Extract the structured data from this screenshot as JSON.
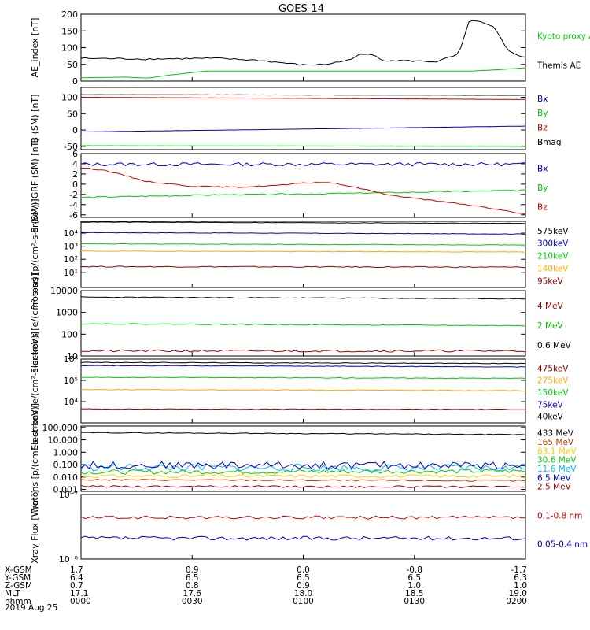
{
  "title": "GOES-14",
  "date": "2019 Aug 25",
  "x_axis": {
    "row_labels": [
      "X-GSM",
      "Y-GSM",
      "Z-GSM",
      "MLT",
      "hhmm"
    ],
    "columns": [
      {
        "values": [
          "1.7",
          "6.4",
          "0.7",
          "17.1",
          "0000"
        ]
      },
      {
        "values": [
          "0.9",
          "6.5",
          "0.8",
          "17.6",
          "0030"
        ]
      },
      {
        "values": [
          "0.0",
          "6.5",
          "0.9",
          "18.0",
          "0100"
        ]
      },
      {
        "values": [
          "-0.8",
          "6.5",
          "1.0",
          "18.5",
          "0130"
        ]
      },
      {
        "values": [
          "-1.7",
          "6.3",
          "1.0",
          "19.0",
          "0200"
        ]
      }
    ]
  },
  "chart_data": [
    {
      "type": "line",
      "ylabel": "AE_index [nT]",
      "scale": "linear",
      "ylim": [
        0,
        200
      ],
      "ticks": [
        {
          "v": 0,
          "t": "0"
        },
        {
          "v": 50,
          "t": "50"
        },
        {
          "v": 100,
          "t": "100"
        },
        {
          "v": 150,
          "t": "150"
        },
        {
          "v": 200,
          "t": "200"
        }
      ],
      "series": [
        {
          "name": "Kyoto proxy AE",
          "color": "#00cc00",
          "noise": 0,
          "ys": 0,
          "t": [
            0,
            0.1,
            0.15,
            0.2,
            0.28,
            0.5,
            0.75,
            0.88,
            0.95,
            1.0
          ],
          "y": [
            10,
            12,
            9,
            18,
            30,
            30,
            30,
            30,
            35,
            40
          ]
        },
        {
          "name": "Themis AE",
          "color": "#000000",
          "noise": 2.5,
          "ys": 1,
          "t": [
            0,
            0.15,
            0.3,
            0.4,
            0.5,
            0.55,
            0.6,
            0.62,
            0.63,
            0.66,
            0.68,
            0.75,
            0.8,
            0.85,
            0.875,
            0.9,
            0.93,
            0.96,
            1.0
          ],
          "y": [
            68,
            66,
            68,
            62,
            48,
            50,
            62,
            75,
            80,
            78,
            62,
            60,
            58,
            80,
            185,
            175,
            160,
            90,
            70
          ]
        }
      ]
    },
    {
      "type": "line",
      "ylabel": "B (SM) [nT]",
      "scale": "linear",
      "ylim": [
        -60,
        130
      ],
      "ticks": [
        {
          "v": -50,
          "t": "-50"
        },
        {
          "v": 0,
          "t": "0"
        },
        {
          "v": 50,
          "t": "50"
        },
        {
          "v": 100,
          "t": "100"
        }
      ],
      "series": [
        {
          "name": "Bx",
          "color": "#0000cc",
          "noise": 0.3,
          "ys": 2,
          "t": [
            0,
            1
          ],
          "y": [
            -6,
            12
          ]
        },
        {
          "name": "By",
          "color": "#00cc00",
          "noise": 0.3,
          "ys": 3,
          "t": [
            0,
            1
          ],
          "y": [
            -48,
            -50
          ]
        },
        {
          "name": "Bz",
          "color": "#cc0000",
          "noise": 0.3,
          "ys": 4,
          "t": [
            0,
            1
          ],
          "y": [
            100,
            93
          ]
        },
        {
          "name": "Bmag",
          "color": "#000000",
          "noise": 0.3,
          "ys": 5,
          "t": [
            0,
            1
          ],
          "y": [
            108,
            106
          ]
        }
      ]
    },
    {
      "type": "line",
      "ylabel": "B (SM)-IGRF (SM) [nT]",
      "scale": "linear",
      "ylim": [
        -6.5,
        6
      ],
      "ticks": [
        {
          "v": -6,
          "t": "-6"
        },
        {
          "v": -4,
          "t": "-4"
        },
        {
          "v": -2,
          "t": "-2"
        },
        {
          "v": 0,
          "t": "0"
        },
        {
          "v": 2,
          "t": "2"
        },
        {
          "v": 4,
          "t": "4"
        },
        {
          "v": 6,
          "t": "6"
        }
      ],
      "series": [
        {
          "name": "Bx",
          "color": "#0000cc",
          "noise": 0.35,
          "ys": 6,
          "t": [
            0,
            1
          ],
          "y": [
            3.9,
            3.9
          ]
        },
        {
          "name": "By",
          "color": "#00cc00",
          "noise": 0.12,
          "ys": 7,
          "t": [
            0,
            0.3,
            0.6,
            1.0
          ],
          "y": [
            -2.6,
            -2.1,
            -1.8,
            -1.2
          ]
        },
        {
          "name": "Bz",
          "color": "#cc0000",
          "noise": 0.1,
          "ys": 8,
          "t": [
            0,
            0.05,
            0.15,
            0.25,
            0.35,
            0.45,
            0.5,
            0.55,
            0.6,
            0.7,
            0.8,
            0.9,
            1.0
          ],
          "y": [
            3.2,
            2.8,
            0.5,
            -0.4,
            -0.6,
            -0.2,
            0.2,
            0.4,
            -0.3,
            -2.2,
            -3.3,
            -4.4,
            -5.9
          ]
        }
      ]
    },
    {
      "type": "line",
      "ylabel": "Protons [p/(cm²-s-sr-keV)]",
      "scale": "log",
      "ylim": [
        0.7,
        80000
      ],
      "ticks": [
        {
          "v": 10,
          "t": "10¹"
        },
        {
          "v": 100,
          "t": "10²"
        },
        {
          "v": 1000,
          "t": "10³"
        },
        {
          "v": 10000,
          "t": "10⁴"
        }
      ],
      "series": [
        {
          "name": "575keV",
          "color": "#000000",
          "noise": 0.02,
          "ys": 9,
          "t": [
            0,
            1
          ],
          "y": [
            70000,
            55000
          ]
        },
        {
          "name": "300keV",
          "color": "#0000cc",
          "noise": 0.02,
          "ys": 10,
          "t": [
            0,
            1
          ],
          "y": [
            11000,
            8500
          ]
        },
        {
          "name": "210keV",
          "color": "#00cc00",
          "noise": 0.02,
          "ys": 11,
          "t": [
            0,
            1
          ],
          "y": [
            1500,
            1250
          ]
        },
        {
          "name": "140keV",
          "color": "#ffaa00",
          "noise": 0.02,
          "ys": 12,
          "t": [
            0,
            1
          ],
          "y": [
            420,
            360
          ]
        },
        {
          "name": "95keV",
          "color": "#990000",
          "noise": 0.04,
          "ys": 13,
          "t": [
            0,
            1
          ],
          "y": [
            28,
            25
          ]
        }
      ]
    },
    {
      "type": "line",
      "ylabel": "Electrons [e/(cm²-s-sr)]",
      "scale": "log",
      "ylim": [
        10,
        10000
      ],
      "ticks": [
        {
          "v": 10,
          "t": "10"
        },
        {
          "v": 100,
          "t": "100"
        },
        {
          "v": 1000,
          "t": "1000"
        },
        {
          "v": 10000,
          "t": "10000"
        }
      ],
      "series": [
        {
          "name": "4 MeV",
          "color": "#990000",
          "noise": 0.05,
          "ys": 14,
          "t": [
            0,
            1
          ],
          "y": [
            17,
            17
          ]
        },
        {
          "name": "2 MeV",
          "color": "#00cc00",
          "noise": 0.02,
          "ys": 15,
          "t": [
            0,
            1
          ],
          "y": [
            300,
            245
          ]
        },
        {
          "name": "0.6 MeV",
          "color": "#000000",
          "noise": 0.02,
          "ys": 16,
          "t": [
            0,
            1
          ],
          "y": [
            5000,
            4200
          ]
        }
      ]
    },
    {
      "type": "line",
      "ylabel": "Electrons [e/(cm²-s-sr-keV)]",
      "scale": "log",
      "ylim": [
        1000,
        1000000
      ],
      "ticks": [
        {
          "v": 10000,
          "t": "10⁴"
        },
        {
          "v": 100000,
          "t": "10⁵"
        },
        {
          "v": 1000000,
          "t": "10⁶"
        }
      ],
      "series": [
        {
          "name": "475keV",
          "color": "#990000",
          "noise": 0.015,
          "ys": 17,
          "t": [
            0,
            1
          ],
          "y": [
            4500,
            4300
          ]
        },
        {
          "name": "275keV",
          "color": "#ffaa00",
          "noise": 0.015,
          "ys": 18,
          "t": [
            0,
            1
          ],
          "y": [
            37000,
            33000
          ]
        },
        {
          "name": "150keV",
          "color": "#00cc00",
          "noise": 0.015,
          "ys": 19,
          "t": [
            0,
            1
          ],
          "y": [
            140000,
            125000
          ]
        },
        {
          "name": "75keV",
          "color": "#0000cc",
          "noise": 0.015,
          "ys": 20,
          "t": [
            0,
            1
          ],
          "y": [
            500000,
            430000
          ]
        },
        {
          "name": "40keV",
          "color": "#000000",
          "noise": 0.015,
          "ys": 21,
          "t": [
            0,
            1
          ],
          "y": [
            700000,
            620000
          ]
        }
      ]
    },
    {
      "type": "line",
      "ylabel": "Protons [p/(cm²-s-sr-keV)]",
      "scale": "log",
      "ylim": [
        0.0007,
        130
      ],
      "ticks": [
        {
          "v": 0.001,
          "t": "0.001"
        },
        {
          "v": 0.01,
          "t": "0.010"
        },
        {
          "v": 0.1,
          "t": "0.100"
        },
        {
          "v": 1,
          "t": "1.000"
        },
        {
          "v": 10,
          "t": "10.000"
        },
        {
          "v": 100,
          "t": "100.000"
        }
      ],
      "series": [
        {
          "name": "433 MeV",
          "color": "#000000",
          "noise": 0.03,
          "ys": 22,
          "t": [
            0,
            1
          ],
          "y": [
            38,
            26
          ]
        },
        {
          "name": "165 MeV",
          "color": "#cc3300",
          "noise": 0.06,
          "ys": 23,
          "t": [
            0,
            1
          ],
          "y": [
            0.006,
            0.005
          ]
        },
        {
          "name": "63.1 MeV",
          "color": "#ffcc00",
          "noise": 0.12,
          "ys": 24,
          "t": [
            0,
            1
          ],
          "y": [
            0.012,
            0.012
          ]
        },
        {
          "name": "30.6 MeV",
          "color": "#00cc00",
          "noise": 0.18,
          "ys": 25,
          "t": [
            0,
            1
          ],
          "y": [
            0.025,
            0.03
          ]
        },
        {
          "name": "11.6 MeV",
          "color": "#00bbee",
          "noise": 0.3,
          "ys": 26,
          "t": [
            0,
            1
          ],
          "y": [
            0.06,
            0.05
          ]
        },
        {
          "name": "6.5 MeV",
          "color": "#0000cc",
          "noise": 0.3,
          "ys": 27,
          "t": [
            0,
            1
          ],
          "y": [
            0.09,
            0.09
          ]
        },
        {
          "name": "2.5 MeV",
          "color": "#990000",
          "noise": 0.08,
          "ys": 28,
          "t": [
            0,
            1
          ],
          "y": [
            0.0018,
            0.0016
          ]
        }
      ]
    },
    {
      "type": "line",
      "ylabel": "Xray Flux [W/m²]",
      "scale": "log",
      "ylim": [
        1e-08,
        1e-07
      ],
      "ticks": [
        {
          "v": 1e-08,
          "t": "10⁻⁸"
        },
        {
          "v": 1e-07,
          "t": "10⁻⁷"
        }
      ],
      "series": [
        {
          "name": "0.1-0.8 nm",
          "color": "#cc0000",
          "noise": 0.025,
          "ys": 29,
          "t": [
            0,
            1
          ],
          "y": [
            4.4e-08,
            4.4e-08
          ]
        },
        {
          "name": "0.05-0.4 nm",
          "color": "#0000cc",
          "noise": 0.03,
          "ys": 30,
          "t": [
            0,
            1
          ],
          "y": [
            2.1e-08,
            2.1e-08
          ]
        }
      ]
    }
  ]
}
